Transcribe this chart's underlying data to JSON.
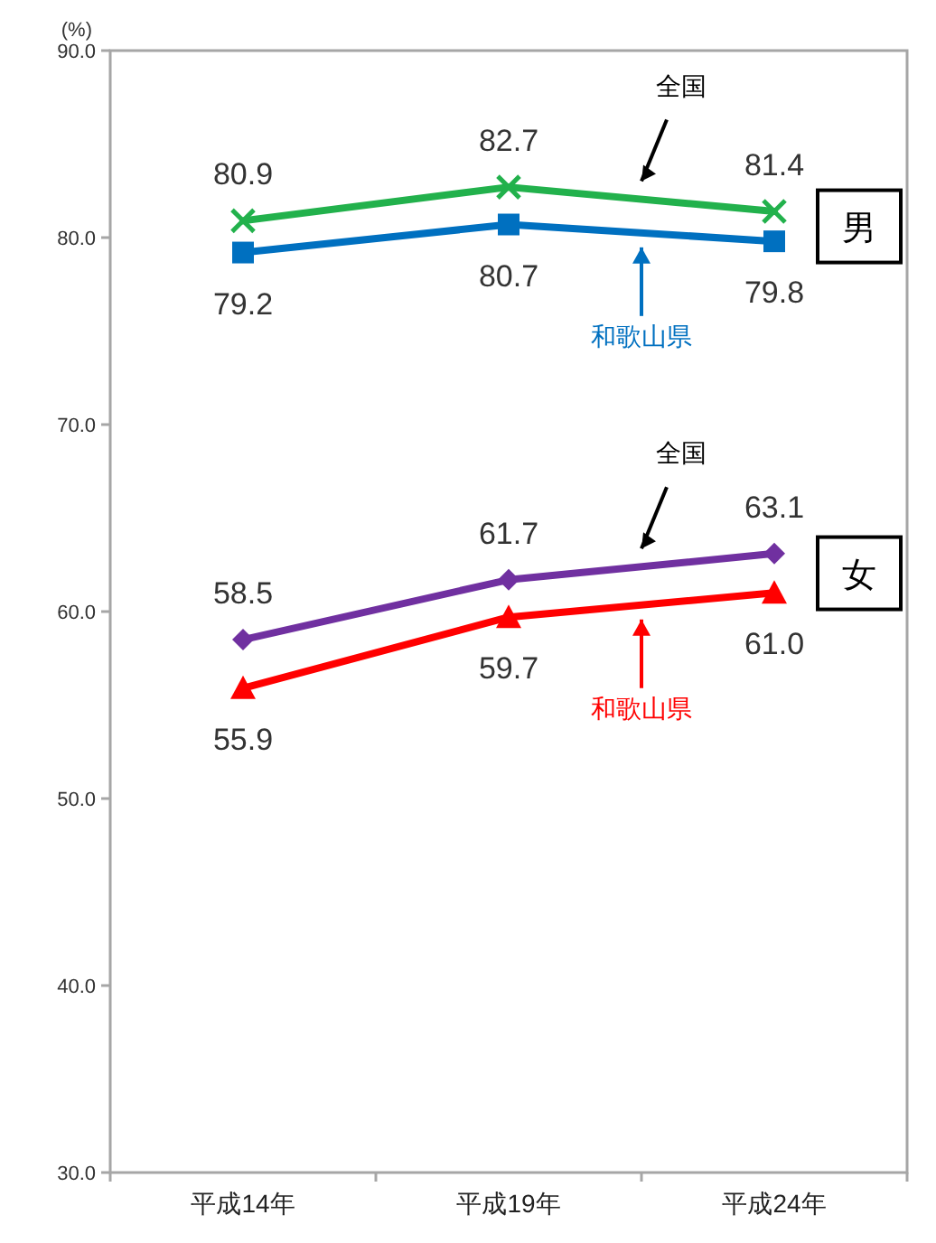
{
  "chart_data": {
    "type": "line",
    "ylabel": "(%)",
    "categories": [
      "平成14年",
      "平成19年",
      "平成24年"
    ],
    "ylim": [
      30,
      90
    ],
    "yticks": [
      {
        "value": 30,
        "label": "30.0"
      },
      {
        "value": 40,
        "label": "40.0"
      },
      {
        "value": 50,
        "label": "50.0"
      },
      {
        "value": 60,
        "label": "60.0"
      },
      {
        "value": 70,
        "label": "70.0"
      },
      {
        "value": 80,
        "label": "80.0"
      },
      {
        "value": 90,
        "label": "90.0"
      }
    ],
    "grid": false,
    "series": [
      {
        "name": "全国",
        "color": "#22b14c",
        "marker": "cross",
        "values": [
          80.9,
          82.7,
          81.4
        ],
        "value_labels": [
          "80.9",
          "82.7",
          "81.4"
        ]
      },
      {
        "name": "和歌山県",
        "color": "#0070c0",
        "marker": "square",
        "values": [
          79.2,
          80.7,
          79.8
        ],
        "value_labels": [
          "79.2",
          "80.7",
          "79.8"
        ]
      },
      {
        "name": "全国",
        "color": "#7030a0",
        "marker": "diamond",
        "values": [
          58.5,
          61.7,
          63.1
        ],
        "value_labels": [
          "58.5",
          "61.7",
          "63.1"
        ]
      },
      {
        "name": "和歌山県",
        "color": "#ff0000",
        "marker": "triangle",
        "values": [
          55.9,
          59.7,
          61.0
        ],
        "value_labels": [
          "55.9",
          "59.7",
          "61.0"
        ]
      }
    ],
    "annotations": [
      "男",
      "女"
    ]
  }
}
